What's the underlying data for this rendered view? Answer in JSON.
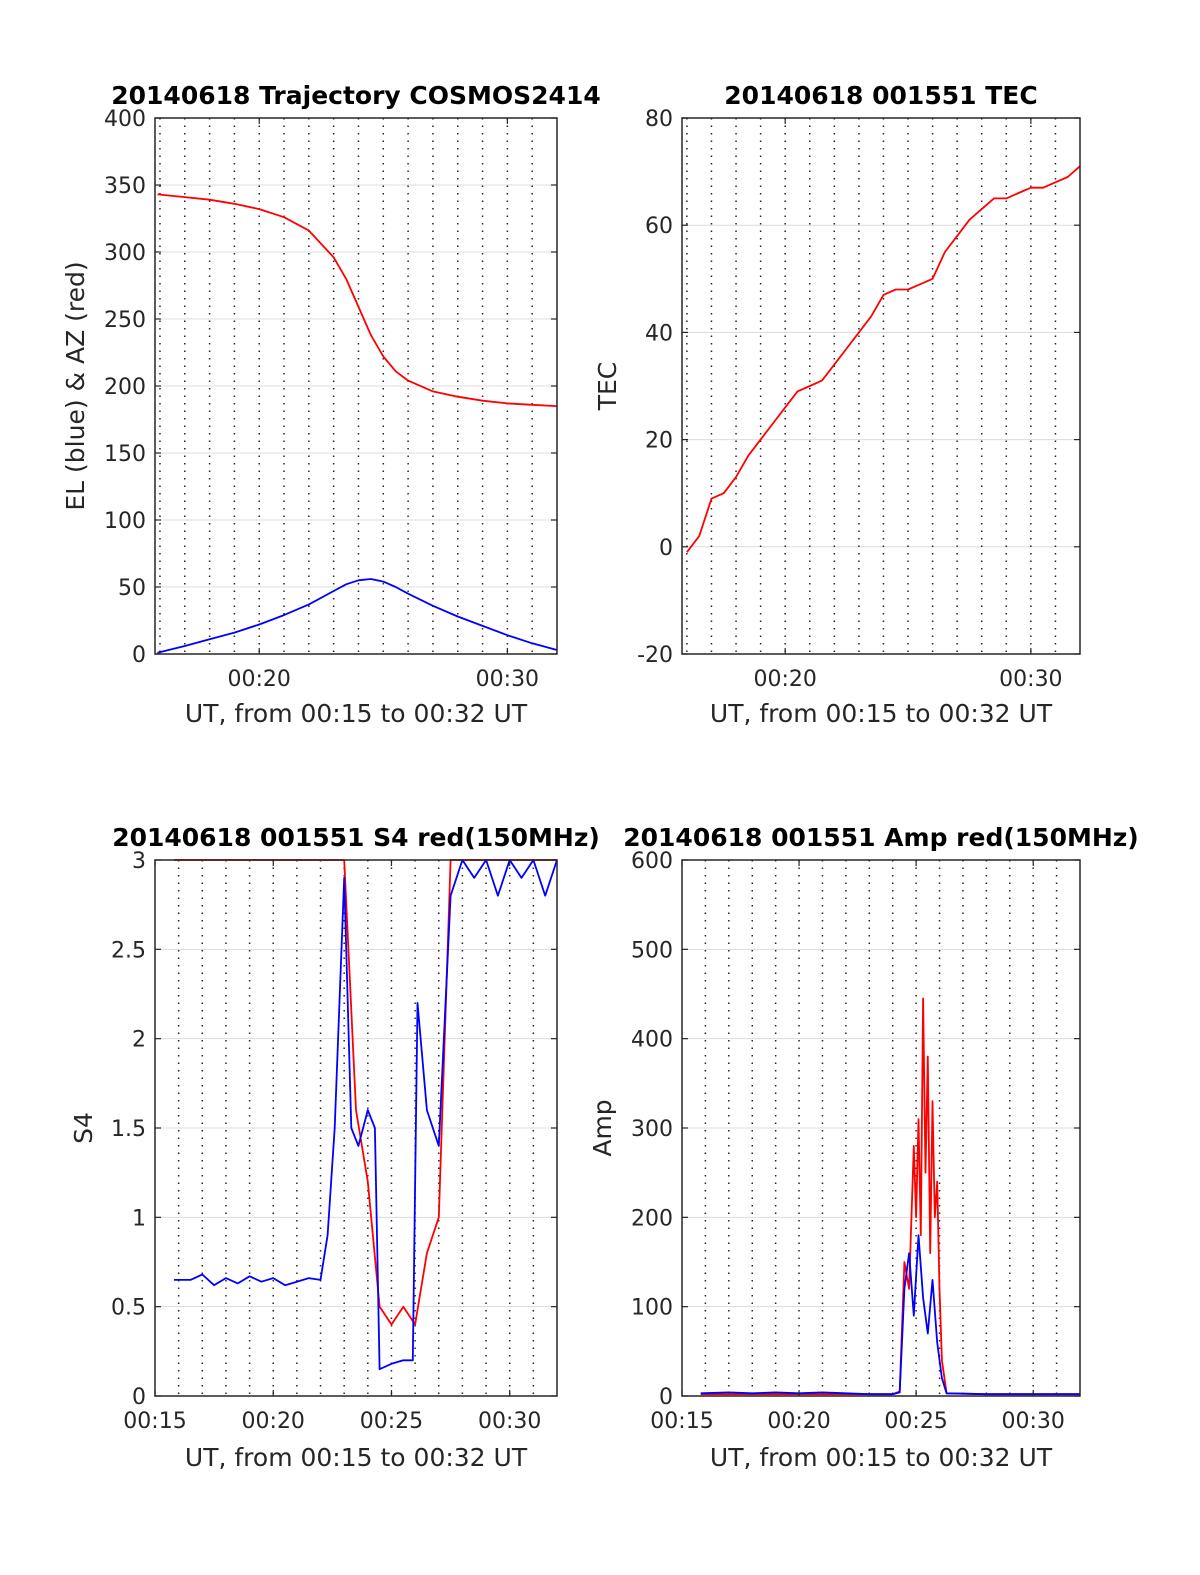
{
  "chart_data": [
    {
      "id": "trajectory",
      "type": "line",
      "title": "20140618 Trajectory COSMOS2414",
      "xlabel": "UT, from 00:15 to 00:32 UT",
      "ylabel": "EL (blue) & AZ (red)",
      "xlim": [
        15.8,
        32.0
      ],
      "ylim": [
        0,
        400
      ],
      "yticks": [
        0,
        50,
        100,
        150,
        200,
        250,
        300,
        350,
        400
      ],
      "ytick_labels": [
        "0",
        "50",
        "100",
        "150",
        "200",
        "250",
        "300",
        "350",
        "400"
      ],
      "xticks": [
        20,
        30
      ],
      "xtick_labels": [
        "00:20",
        "00:30"
      ],
      "minor_x_grid_step_minutes": 1,
      "grid": true,
      "series": [
        {
          "color": "#ff0000",
          "x": [
            15.9,
            17,
            18,
            19,
            20,
            21,
            22,
            23,
            23.5,
            24,
            24.5,
            25,
            25.5,
            26,
            27,
            28,
            29,
            30,
            31,
            32
          ],
          "y": [
            343,
            341,
            339,
            336,
            332,
            326,
            316,
            296,
            280,
            259,
            238,
            222,
            211,
            204,
            196,
            192,
            189,
            187,
            186,
            185
          ]
        },
        {
          "color": "#0000ff",
          "x": [
            15.9,
            17,
            18,
            19,
            20,
            21,
            22,
            23,
            23.5,
            24,
            24.5,
            25,
            25.5,
            26,
            27,
            28,
            29,
            30,
            31,
            32
          ],
          "y": [
            1,
            6,
            11,
            16,
            22,
            29,
            37,
            47,
            52,
            55,
            56,
            54,
            50,
            45,
            36,
            28,
            21,
            14,
            8,
            3
          ]
        }
      ]
    },
    {
      "id": "tec",
      "type": "line",
      "title": "20140618 001551 TEC",
      "xlabel": "UT, from 00:15 to 00:32 UT",
      "ylabel": "TEC",
      "xlim": [
        15.8,
        32.0
      ],
      "ylim": [
        -20,
        80
      ],
      "yticks": [
        -20,
        0,
        20,
        40,
        60,
        80
      ],
      "ytick_labels": [
        "-20",
        "0",
        "20",
        "40",
        "60",
        "80"
      ],
      "xticks": [
        20,
        30
      ],
      "xtick_labels": [
        "00:20",
        "00:30"
      ],
      "minor_x_grid_step_minutes": 1,
      "grid": true,
      "series": [
        {
          "color": "#ff0000",
          "x": [
            16,
            16.5,
            17,
            17.5,
            18,
            18.5,
            19,
            19.5,
            20,
            20.5,
            21,
            21.5,
            22,
            22.5,
            23,
            23.5,
            24,
            24.5,
            25,
            25.5,
            26,
            26.5,
            27,
            27.5,
            28,
            28.5,
            29,
            29.5,
            30,
            30.5,
            31,
            31.5,
            32
          ],
          "y": [
            -1,
            2,
            9,
            10,
            13,
            17,
            20,
            23,
            26,
            29,
            30,
            31,
            34,
            37,
            40,
            43,
            47,
            48,
            48,
            49,
            50,
            55,
            58,
            61,
            63,
            65,
            65,
            66,
            67,
            67,
            68,
            69,
            71
          ]
        }
      ]
    },
    {
      "id": "s4",
      "type": "line",
      "title": "20140618 001551 S4 red(150MHz)",
      "xlabel": "UT, from 00:15 to 00:32 UT",
      "ylabel": "S4",
      "xlim": [
        15.0,
        32.0
      ],
      "ylim": [
        0,
        3
      ],
      "yticks": [
        0,
        0.5,
        1,
        1.5,
        2,
        2.5,
        3
      ],
      "ytick_labels": [
        "0",
        "0.5",
        "1",
        "1.5",
        "2",
        "2.5",
        "3"
      ],
      "xticks": [
        15,
        20,
        25,
        30
      ],
      "xtick_labels": [
        "00:15",
        "00:20",
        "00:25",
        "00:30"
      ],
      "minor_x_grid_step_minutes": 1,
      "grid": true,
      "series": [
        {
          "color": "#ff0000",
          "x": [
            15.8,
            17,
            18,
            19,
            20,
            21,
            22,
            22.5,
            23,
            23.5,
            24,
            24.5,
            25,
            25.5,
            26,
            26.5,
            27,
            27.5,
            28,
            29,
            30,
            31,
            32
          ],
          "y": [
            3,
            3,
            3,
            3,
            3,
            3,
            3,
            3,
            3,
            1.6,
            1.2,
            0.5,
            0.4,
            0.5,
            0.4,
            0.8,
            1.0,
            3,
            3,
            3,
            3,
            3,
            3
          ]
        },
        {
          "color": "#0000ff",
          "x": [
            15.8,
            16.5,
            17,
            17.5,
            18,
            18.5,
            19,
            19.5,
            20,
            20.5,
            21,
            21.5,
            22,
            22.3,
            22.6,
            23,
            23.3,
            23.6,
            24,
            24.3,
            24.5,
            25,
            25.5,
            25.9,
            26.1,
            26.5,
            27,
            27.5,
            28,
            28.5,
            29,
            29.5,
            30,
            30.5,
            31,
            31.5,
            32
          ],
          "y": [
            0.65,
            0.65,
            0.68,
            0.62,
            0.66,
            0.63,
            0.67,
            0.64,
            0.66,
            0.62,
            0.64,
            0.66,
            0.65,
            0.9,
            1.5,
            2.9,
            1.5,
            1.4,
            1.6,
            1.5,
            0.15,
            0.18,
            0.2,
            0.2,
            2.2,
            1.6,
            1.4,
            2.8,
            3,
            2.9,
            3,
            2.8,
            3,
            2.9,
            3,
            2.8,
            3
          ]
        }
      ]
    },
    {
      "id": "amp",
      "type": "line",
      "title": "20140618 001551 Amp red(150MHz)",
      "xlabel": "UT, from 00:15 to 00:32 UT",
      "ylabel": "Amp",
      "xlim": [
        15.0,
        32.0
      ],
      "ylim": [
        0,
        600
      ],
      "yticks": [
        0,
        100,
        200,
        300,
        400,
        500,
        600
      ],
      "ytick_labels": [
        "0",
        "100",
        "200",
        "300",
        "400",
        "500",
        "600"
      ],
      "xticks": [
        15,
        20,
        25,
        30
      ],
      "xtick_labels": [
        "00:15",
        "00:20",
        "00:25",
        "00:30"
      ],
      "minor_x_grid_step_minutes": 1,
      "grid": true,
      "series": [
        {
          "color": "#ff0000",
          "x": [
            15.8,
            24,
            24.3,
            24.5,
            24.7,
            24.9,
            25.0,
            25.1,
            25.2,
            25.3,
            25.4,
            25.5,
            25.6,
            25.7,
            25.8,
            25.9,
            26.0,
            26.1,
            26.3,
            28,
            32
          ],
          "y": [
            2,
            2,
            5,
            150,
            120,
            280,
            200,
            310,
            180,
            445,
            250,
            380,
            160,
            330,
            200,
            240,
            120,
            40,
            3,
            2,
            2
          ]
        },
        {
          "color": "#0000ff",
          "x": [
            15.8,
            17,
            18,
            19,
            20,
            21,
            22,
            23,
            24,
            24.3,
            24.5,
            24.7,
            24.9,
            25.1,
            25.3,
            25.5,
            25.7,
            25.9,
            26.1,
            26.3,
            28,
            30,
            32
          ],
          "y": [
            3,
            4,
            3,
            4,
            3,
            4,
            3,
            2,
            2,
            4,
            120,
            160,
            90,
            180,
            110,
            70,
            130,
            60,
            20,
            3,
            2,
            2,
            2
          ]
        }
      ]
    }
  ]
}
